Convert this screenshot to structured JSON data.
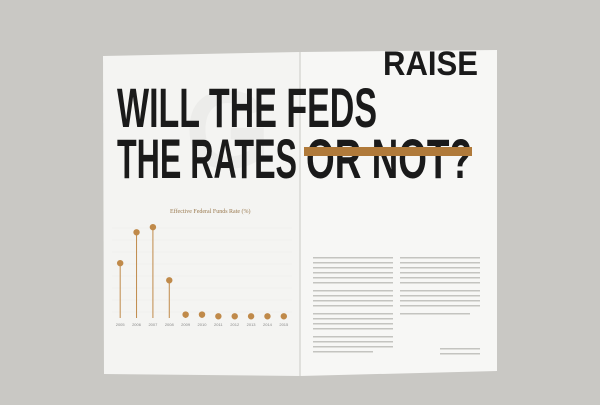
{
  "header": {
    "line1": "WILL THE FEDS",
    "line2": "RAISE",
    "line3a": "THE RATES",
    "line3b": "OR NOT?"
  },
  "chart_data": {
    "type": "lollipop",
    "title": "Effective Federal Funds Rate (%)",
    "categories": [
      "2005",
      "2006",
      "2007",
      "2008",
      "2009",
      "2010",
      "2011",
      "2012",
      "2013",
      "2014",
      "2015"
    ],
    "values": [
      3.2,
      5.0,
      5.3,
      2.2,
      0.2,
      0.2,
      0.1,
      0.1,
      0.1,
      0.1,
      0.1
    ],
    "color": "#c08a4a",
    "ylim": [
      0,
      5.6
    ]
  }
}
